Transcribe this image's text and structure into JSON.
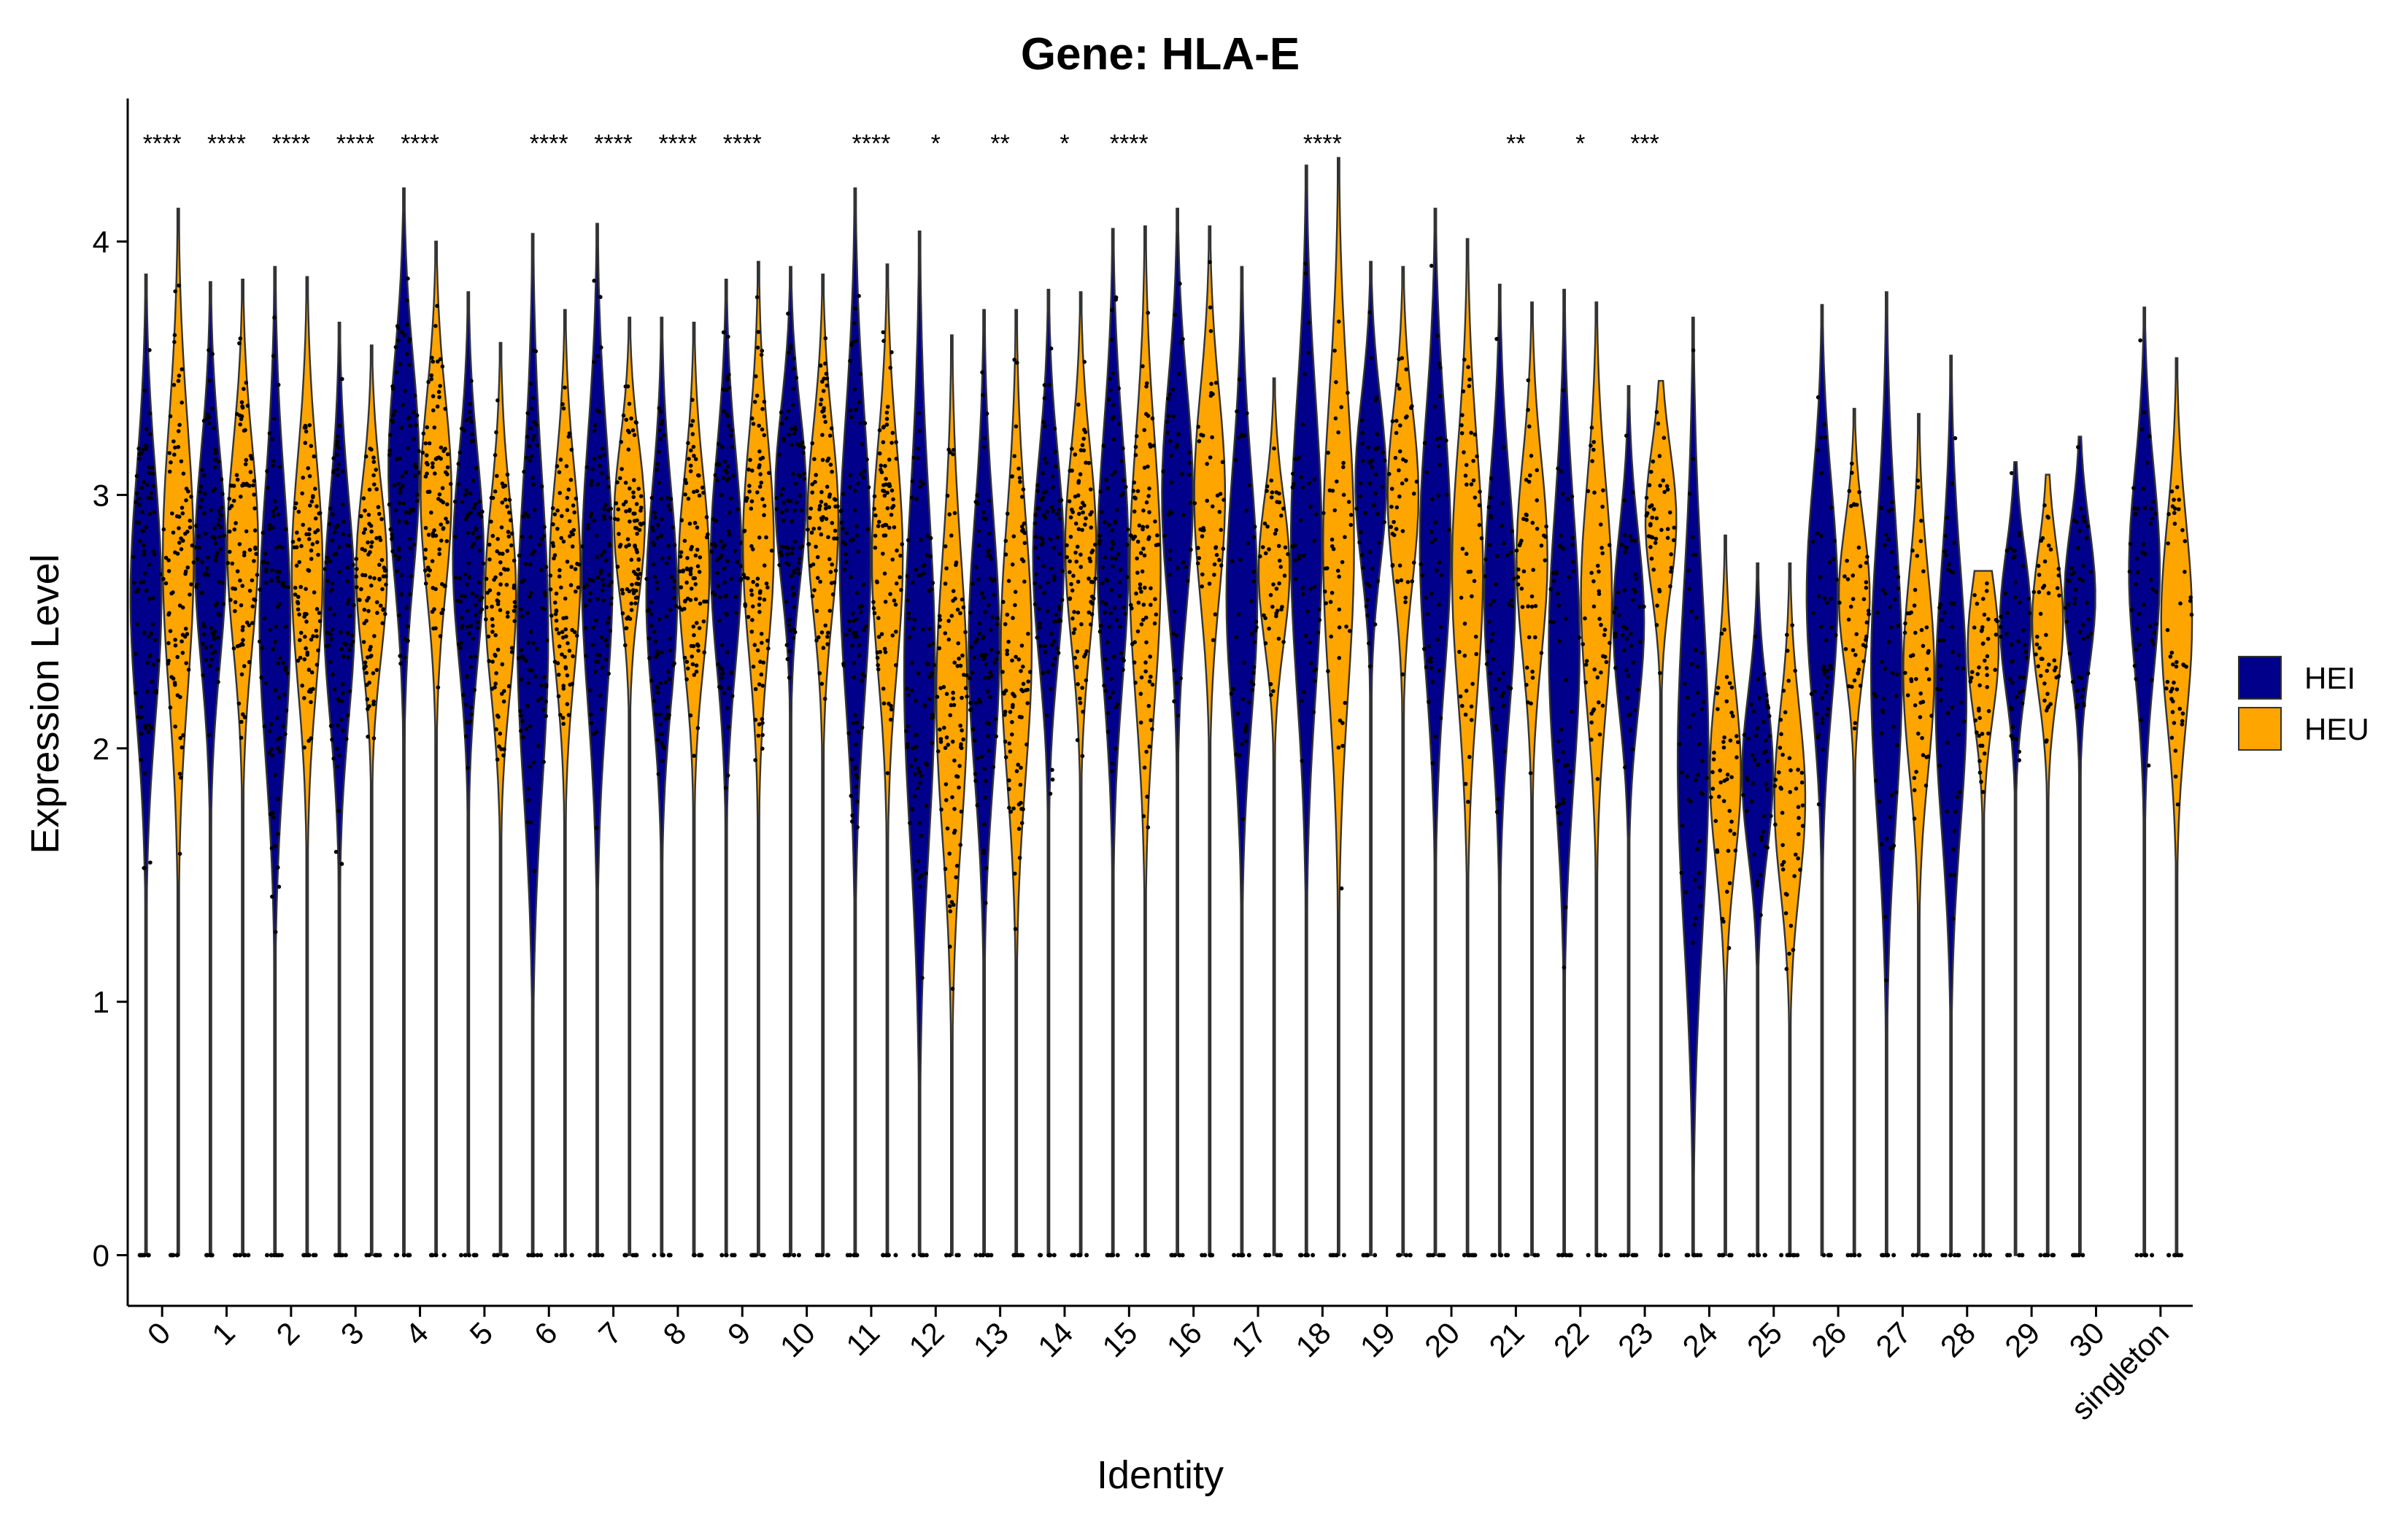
{
  "chart_data": {
    "type": "violin",
    "title": "Gene: HLA-E",
    "xlabel": "Identity",
    "ylabel": "Expression Level",
    "ylim": [
      -0.2,
      4.55
    ],
    "yticks": [
      0,
      1,
      2,
      3,
      4
    ],
    "categories": [
      "0",
      "1",
      "2",
      "3",
      "4",
      "5",
      "6",
      "7",
      "8",
      "9",
      "10",
      "11",
      "12",
      "13",
      "14",
      "15",
      "16",
      "17",
      "18",
      "19",
      "20",
      "21",
      "22",
      "23",
      "24",
      "25",
      "26",
      "27",
      "28",
      "29",
      "30",
      "singleton"
    ],
    "significance": [
      "****",
      "****",
      "****",
      "****",
      "****",
      "",
      "****",
      "****",
      "****",
      "****",
      "",
      "****",
      "*",
      "**",
      "*",
      "****",
      "",
      "",
      "****",
      "",
      "",
      "**",
      "*",
      "***",
      "",
      "",
      "",
      "",
      "",
      "",
      "",
      ""
    ],
    "colors": {
      "HEI": "#00008B",
      "HEU": "#FFA500"
    },
    "legend": {
      "position": "right",
      "entries": [
        "HEI",
        "HEU"
      ]
    },
    "series": [
      {
        "name": "HEI",
        "median": [
          2.6,
          2.75,
          2.5,
          2.55,
          3.1,
          2.75,
          2.45,
          2.7,
          2.6,
          2.75,
          3.0,
          2.75,
          2.3,
          2.4,
          2.75,
          2.75,
          3.0,
          2.6,
          2.8,
          3.05,
          2.8,
          2.6,
          2.4,
          2.5,
          1.95,
          1.9,
          2.6,
          2.3,
          2.2,
          2.5,
          2.6,
          2.7
        ],
        "max": [
          3.87,
          3.84,
          3.9,
          3.68,
          4.21,
          3.8,
          4.03,
          4.07,
          3.7,
          3.85,
          3.9,
          4.21,
          4.04,
          3.73,
          3.81,
          4.05,
          4.13,
          3.9,
          4.3,
          3.92,
          4.13,
          3.83,
          3.81,
          3.43,
          3.7,
          2.73,
          3.75,
          3.8,
          3.55,
          3.13,
          3.23,
          3.74
        ]
      },
      {
        "name": "HEU",
        "median": [
          2.75,
          2.8,
          2.7,
          2.7,
          3.0,
          2.6,
          2.7,
          2.9,
          2.7,
          2.8,
          2.9,
          2.75,
          2.2,
          2.4,
          2.8,
          2.7,
          3.0,
          2.7,
          2.8,
          3.0,
          2.7,
          2.75,
          2.6,
          2.9,
          1.9,
          1.8,
          2.6,
          2.3,
          2.4,
          2.5,
          null,
          2.5
        ],
        "max": [
          4.13,
          3.85,
          3.86,
          3.59,
          4.0,
          3.6,
          3.73,
          3.7,
          3.68,
          3.92,
          3.87,
          3.91,
          3.63,
          3.73,
          3.8,
          4.06,
          4.06,
          3.46,
          4.33,
          3.9,
          4.01,
          3.76,
          3.76,
          3.45,
          2.84,
          2.73,
          3.34,
          3.32,
          2.7,
          3.08,
          null,
          3.54
        ]
      }
    ]
  }
}
